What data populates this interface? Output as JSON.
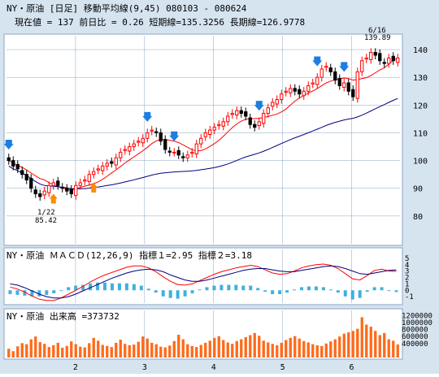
{
  "header": {
    "title": "NY・原油 [日足] 移動平均線(9,45) 080103 - 080624",
    "price_line": "現在値 = 137 前日比 = 0.26 短期線=135.3256 長期線=126.9778"
  },
  "macd_panel": {
    "label": "NY・原油 ＭＡＣＤ(12,26,9) 指標１=2.95 指標２=3.18"
  },
  "volume_panel": {
    "label": "NY・原油 出来高 =373732"
  },
  "annotations": {
    "low_date": "1/22",
    "low_value": "85.42",
    "high_date": "6/16",
    "high_value": "139.89"
  },
  "colors": {
    "background": "#d6e4f0",
    "grid": "#8aa6c6",
    "up_candle": "#ff0000",
    "down_candle": "#000000",
    "short_ma": "#ff0000",
    "long_ma": "#000080",
    "buy_arrow": "#ff8c00",
    "sell_arrow": "#1e7de0",
    "macd_line": "#ff0000",
    "signal_line": "#000080",
    "histogram_pos": "#3fb0e0",
    "histogram_neg": "#3fb0e0",
    "volume_bar": "#ff6a1a"
  },
  "chart_data": [
    {
      "type": "candlestick",
      "title": "NY・原油 [日足] 移動平均線(9,45)",
      "ylim": [
        70,
        145
      ],
      "y_ticks": [
        80,
        90,
        100,
        110,
        120,
        130,
        140
      ],
      "x_ticks": [
        "2",
        "3",
        "4",
        "5",
        "6"
      ],
      "close_series": [
        100,
        98,
        97,
        95,
        93,
        90,
        88,
        87,
        89,
        91,
        92,
        91,
        90,
        89,
        88,
        91,
        92,
        93,
        95,
        96,
        97,
        98,
        99,
        99,
        101,
        103,
        104,
        105,
        106,
        107,
        108,
        110,
        111,
        110,
        107,
        104,
        103,
        103,
        102,
        101,
        102,
        103,
        106,
        108,
        110,
        111,
        112,
        113,
        114,
        116,
        117,
        118,
        117,
        116,
        113,
        112,
        114,
        117,
        119,
        121,
        122,
        124,
        125,
        126,
        125,
        124,
        125,
        127,
        128,
        130,
        133,
        134,
        132,
        129,
        127,
        128,
        125,
        123,
        132,
        136,
        137,
        139,
        138,
        136,
        135,
        137,
        136,
        137
      ],
      "ma_short_label": "短期線=135.3256",
      "ma_long_label": "長期線=126.9778",
      "buy_signal_indices": [
        10,
        19
      ],
      "sell_signal_indices": [
        0,
        31,
        37,
        56,
        69,
        75
      ]
    },
    {
      "type": "line",
      "title": "ＭＡＣＤ(12,26,9)",
      "ylim": [
        -2,
        6
      ],
      "y_ticks": [
        5,
        4,
        3,
        2,
        1,
        0,
        -1
      ],
      "series": [
        {
          "name": "指標１",
          "values": [
            0.5,
            0.2,
            -0.3,
            -0.9,
            -1.4,
            -1.6,
            -1.6,
            -1.2,
            -0.6,
            0.0,
            0.6,
            1.3,
            1.9,
            2.4,
            2.8,
            3.2,
            3.6,
            3.8,
            3.8,
            3.5,
            2.9,
            2.1,
            1.4,
            0.9,
            0.8,
            1.0,
            1.5,
            2.0,
            2.5,
            2.9,
            3.2,
            3.5,
            3.7,
            3.9,
            3.7,
            3.2,
            2.7,
            2.5,
            2.6,
            3.0,
            3.5,
            3.8,
            4.0,
            4.1,
            3.9,
            3.4,
            2.6,
            1.8,
            1.6,
            2.3,
            3.1,
            3.3,
            3.0,
            2.95
          ]
        },
        {
          "name": "指標２",
          "values": [
            1.0,
            0.8,
            0.4,
            -0.1,
            -0.6,
            -1.0,
            -1.2,
            -1.2,
            -1.0,
            -0.6,
            -0.1,
            0.4,
            0.9,
            1.4,
            1.9,
            2.3,
            2.7,
            3.0,
            3.2,
            3.3,
            3.2,
            2.9,
            2.4,
            2.0,
            1.6,
            1.4,
            1.4,
            1.6,
            1.9,
            2.2,
            2.5,
            2.8,
            3.1,
            3.3,
            3.4,
            3.4,
            3.2,
            3.0,
            2.9,
            2.9,
            3.1,
            3.3,
            3.5,
            3.7,
            3.8,
            3.7,
            3.4,
            3.0,
            2.6,
            2.5,
            2.7,
            2.9,
            3.1,
            3.18
          ]
        }
      ]
    },
    {
      "type": "bar",
      "title": "出来高",
      "ylim": [
        0,
        1300000
      ],
      "y_ticks": [
        1200000,
        1000000,
        800000,
        600000,
        400000
      ],
      "values": [
        250000,
        180000,
        320000,
        410000,
        380000,
        520000,
        600000,
        440000,
        390000,
        300000,
        350000,
        420000,
        280000,
        330000,
        460000,
        380000,
        310000,
        290000,
        410000,
        560000,
        480000,
        360000,
        330000,
        300000,
        420000,
        510000,
        390000,
        350000,
        370000,
        450000,
        600000,
        540000,
        420000,
        380000,
        310000,
        290000,
        340000,
        470000,
        650000,
        520000,
        380000,
        330000,
        300000,
        360000,
        420000,
        480000,
        560000,
        610000,
        500000,
        430000,
        390000,
        470000,
        520000,
        580000,
        640000,
        700000,
        620000,
        480000,
        430000,
        390000,
        350000,
        420000,
        500000,
        560000,
        610000,
        540000,
        470000,
        430000,
        380000,
        350000,
        330000,
        400000,
        460000,
        520000,
        600000,
        680000,
        720000,
        760000,
        820000,
        1150000,
        940000,
        880000,
        760000,
        640000,
        700000,
        520000,
        480000,
        373732
      ]
    }
  ]
}
